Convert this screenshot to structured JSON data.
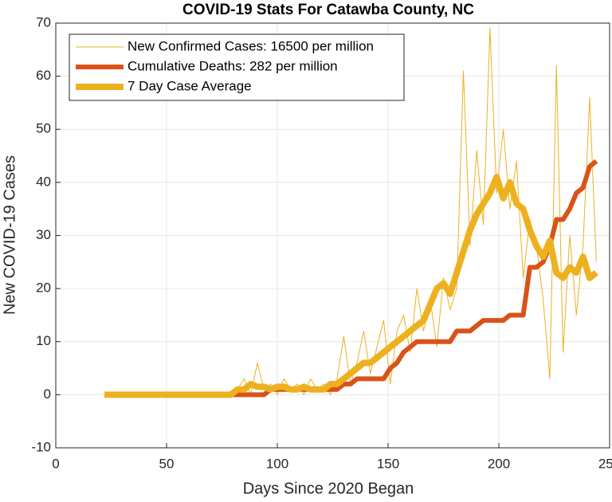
{
  "chart_data": {
    "type": "line",
    "title": "COVID-19 Stats For Catawba County, NC",
    "x_label": "Days Since 2020 Began",
    "y_label": "New COVID-19 Cases",
    "xlim": [
      0,
      250
    ],
    "xticks": [
      0,
      50,
      100,
      150,
      200,
      250
    ],
    "ylim": [
      -10,
      70
    ],
    "yticks": [
      -10,
      0,
      10,
      20,
      30,
      40,
      50,
      60,
      70
    ],
    "grid": true,
    "legend": "upper left",
    "x": [
      22,
      25,
      28,
      31,
      34,
      37,
      40,
      43,
      46,
      49,
      52,
      55,
      58,
      61,
      64,
      67,
      70,
      73,
      76,
      79,
      82,
      85,
      88,
      91,
      94,
      97,
      100,
      103,
      106,
      109,
      112,
      115,
      118,
      121,
      124,
      127,
      130,
      133,
      136,
      139,
      142,
      145,
      148,
      151,
      154,
      157,
      160,
      163,
      166,
      169,
      172,
      175,
      178,
      181,
      184,
      187,
      190,
      193,
      196,
      199,
      202,
      205,
      208,
      211,
      214,
      217,
      220,
      223,
      226,
      229,
      232,
      235,
      238,
      241,
      244
    ],
    "series": [
      {
        "name": "New Confirmed Cases: 16500 per million",
        "color": "#EDB120",
        "width": 1,
        "values": [
          0,
          0,
          0,
          0,
          0,
          0,
          0,
          0,
          0,
          0,
          0,
          0,
          0,
          0,
          0,
          0,
          0,
          0,
          0,
          0,
          1,
          3,
          0,
          6,
          1,
          2,
          0,
          3,
          1,
          2,
          0,
          3,
          1,
          2,
          0,
          3,
          11,
          2,
          6,
          12,
          4,
          9,
          14,
          2,
          12,
          15,
          8,
          20,
          12,
          18,
          9,
          22,
          16,
          20,
          61,
          28,
          46,
          32,
          69,
          38,
          50,
          35,
          44,
          22,
          33,
          28,
          18,
          3,
          62,
          8,
          30,
          15,
          28,
          56,
          25
        ]
      },
      {
        "name": "Cumulative Deaths: 282 per million",
        "color": "#D95319",
        "width": 6,
        "values": [
          0,
          0,
          0,
          0,
          0,
          0,
          0,
          0,
          0,
          0,
          0,
          0,
          0,
          0,
          0,
          0,
          0,
          0,
          0,
          0,
          0,
          0,
          0,
          0,
          0,
          1,
          1,
          1,
          1,
          1,
          1,
          1,
          1,
          1,
          1,
          1,
          2,
          2,
          3,
          3,
          3,
          3,
          3,
          5,
          6,
          8,
          9,
          10,
          10,
          10,
          10,
          10,
          10,
          12,
          12,
          12,
          13,
          14,
          14,
          14,
          14,
          15,
          15,
          15,
          24,
          24,
          25,
          28,
          33,
          33,
          35,
          38,
          39,
          43,
          44
        ]
      },
      {
        "name": "7 Day Case Average",
        "color": "#EDB120",
        "width": 8,
        "values": [
          0,
          0,
          0,
          0,
          0,
          0,
          0,
          0,
          0,
          0,
          0,
          0,
          0,
          0,
          0,
          0,
          0,
          0,
          0,
          0,
          1,
          1,
          2,
          1.5,
          1.5,
          1,
          1.5,
          1.5,
          1,
          1,
          1.5,
          1,
          1,
          1,
          2,
          2,
          3,
          4,
          5,
          6,
          6,
          7,
          8,
          9,
          10,
          11,
          12,
          13,
          14,
          17,
          20,
          21,
          19,
          23,
          27,
          31,
          34,
          36,
          38,
          41,
          37,
          40,
          36,
          35,
          31,
          28,
          26,
          29,
          23,
          22,
          24,
          23,
          26,
          22,
          23
        ]
      }
    ]
  }
}
